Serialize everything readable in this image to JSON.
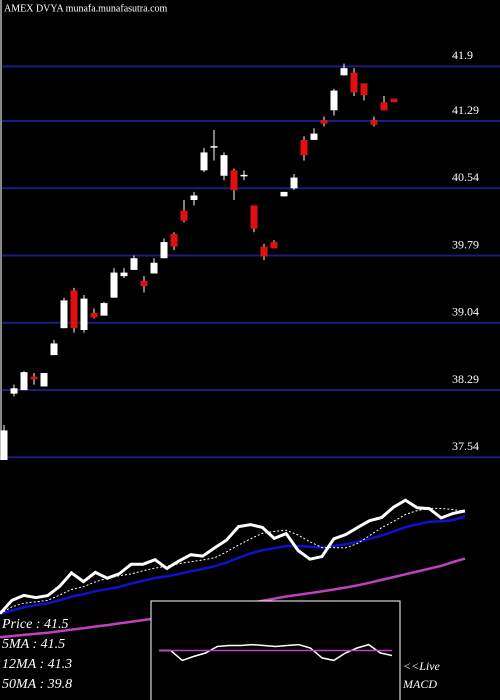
{
  "chart_data": [
    {
      "type": "candlestick",
      "title": "AMEX  DVYA munafa.munafasutra.com",
      "open": [
        37.51,
        38.25,
        38.29,
        38.44,
        38.33,
        38.68,
        38.98,
        39.4,
        38.96,
        39.15,
        39.12,
        39.32,
        39.56,
        39.63,
        39.51,
        39.59,
        39.76,
        40.03,
        40.29,
        40.41,
        40.74,
        41.0,
        40.68,
        40.74,
        40.68,
        40.35,
        39.89,
        39.94,
        40.45,
        40.54,
        41.08,
        41.08,
        41.3,
        41.41,
        41.8,
        41.83,
        41.71,
        41.3,
        41.5,
        41.54
      ],
      "high": [
        37.9,
        38.35,
        38.5,
        38.48,
        38.48,
        38.85,
        39.32,
        39.43,
        39.35,
        39.2,
        39.27,
        39.65,
        39.65,
        39.79,
        39.56,
        39.76,
        39.98,
        40.05,
        40.41,
        40.5,
        40.99,
        41.19,
        40.94,
        40.76,
        40.74,
        40.35,
        39.92,
        39.96,
        40.5,
        40.7,
        41.12,
        41.21,
        41.34,
        41.65,
        41.93,
        41.88,
        41.71,
        41.34,
        41.57,
        41.54
      ],
      "low": [
        37.51,
        38.22,
        38.29,
        38.35,
        38.33,
        38.68,
        38.98,
        38.93,
        38.93,
        39.09,
        39.12,
        39.32,
        39.54,
        39.63,
        39.38,
        39.59,
        39.76,
        39.85,
        40.16,
        40.35,
        40.72,
        40.85,
        40.63,
        40.41,
        40.63,
        40.05,
        39.74,
        39.87,
        40.45,
        40.52,
        40.85,
        41.08,
        41.23,
        41.35,
        41.8,
        41.57,
        41.52,
        41.23,
        41.41,
        41.5
      ],
      "close": [
        37.84,
        38.31,
        38.49,
        38.41,
        38.48,
        38.81,
        39.29,
        38.98,
        39.31,
        39.1,
        39.26,
        39.6,
        39.6,
        39.76,
        39.45,
        39.71,
        39.94,
        39.89,
        40.18,
        40.46,
        40.94,
        41.01,
        40.91,
        40.52,
        40.69,
        40.09,
        39.78,
        39.87,
        40.5,
        40.66,
        40.91,
        41.15,
        41.26,
        41.63,
        41.88,
        41.61,
        41.58,
        41.25,
        41.41,
        41.5
      ],
      "up_color": "#ffffff",
      "down_color": "#e01010",
      "wick_color": "#ffffff",
      "ylim": [
        37.51,
        42.64
      ],
      "yticks": [
        41.9,
        41.29,
        40.54,
        39.79,
        39.04,
        38.29,
        37.54
      ],
      "grid": true,
      "grid_color": "#1c1c80"
    },
    {
      "type": "line",
      "price_color": "#ffffff",
      "series": [
        {
          "name": "5MA",
          "color": "#ffffff",
          "dash": true,
          "values": [
            37.84,
            38.08,
            38.21,
            38.26,
            38.31,
            38.5,
            38.7,
            38.8,
            38.97,
            39.1,
            39.19,
            39.25,
            39.37,
            39.46,
            39.53,
            39.62,
            39.69,
            39.75,
            39.83,
            40.04,
            40.28,
            40.5,
            40.7,
            40.77,
            40.81,
            40.64,
            40.4,
            40.19,
            40.19,
            40.18,
            40.34,
            40.62,
            40.9,
            41.12,
            41.37,
            41.51,
            41.59,
            41.59,
            41.55,
            41.47
          ]
        },
        {
          "name": "12MA",
          "color": "#1010d0",
          "dash": false,
          "values": [
            37.84,
            37.95,
            38.06,
            38.14,
            38.21,
            38.31,
            38.45,
            38.53,
            38.64,
            38.71,
            38.79,
            38.91,
            39.01,
            39.11,
            39.17,
            39.25,
            39.35,
            39.43,
            39.53,
            39.66,
            39.83,
            39.98,
            40.1,
            40.17,
            40.25,
            40.25,
            40.22,
            40.2,
            40.25,
            40.31,
            40.4,
            40.51,
            40.62,
            40.77,
            40.92,
            41.02,
            41.11,
            41.13,
            41.17,
            41.3
          ]
        },
        {
          "name": "50MA",
          "color": "#c040c0",
          "dash": false,
          "values": [
            37.0,
            37.04,
            37.08,
            37.12,
            37.16,
            37.21,
            37.27,
            37.32,
            37.38,
            37.43,
            37.49,
            37.55,
            37.61,
            37.67,
            37.73,
            37.79,
            37.86,
            37.92,
            37.99,
            38.06,
            38.14,
            38.22,
            38.3,
            38.37,
            38.45,
            38.51,
            38.57,
            38.63,
            38.7,
            38.77,
            38.85,
            38.94,
            39.04,
            39.14,
            39.24,
            39.34,
            39.44,
            39.54,
            39.68,
            39.8
          ]
        }
      ],
      "ylim": [
        36.9,
        42.6
      ],
      "legend": [
        "Price  : 41.5",
        "5MA : 41.5",
        "12MA : 41.3",
        "50MA : 39.8"
      ]
    },
    {
      "type": "line",
      "title": "MACD",
      "annotation": "<<Live",
      "series": [
        {
          "name": "MACD",
          "color": "#ffffff",
          "values": [
            0.0,
            0.0,
            -0.2,
            -0.12,
            -0.05,
            0.08,
            0.1,
            0.1,
            0.12,
            0.1,
            0.08,
            0.1,
            0.12,
            0.05,
            -0.15,
            -0.2,
            -0.05,
            0.05,
            0.12,
            -0.05,
            -0.1
          ]
        },
        {
          "name": "Signal",
          "color": "#c040c0",
          "values": [
            0.0,
            0.0,
            0.0,
            0.0,
            0.0,
            0.0,
            0.0,
            0.0,
            0.0,
            0.0,
            0.0,
            0.0,
            0.0,
            0.0,
            0.0,
            0.0,
            0.0,
            0.0,
            0.0,
            0.0,
            0.0
          ]
        }
      ],
      "ylim": [
        -1,
        1
      ]
    }
  ]
}
